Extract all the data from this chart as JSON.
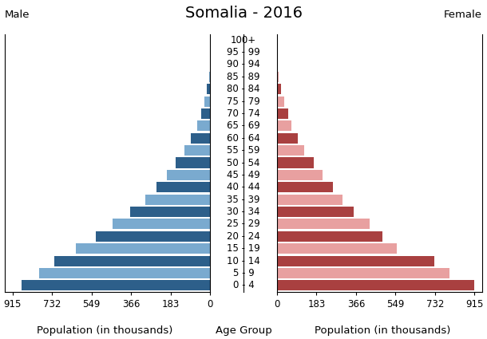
{
  "title": "Somalia - 2016",
  "title_fontsize": 14,
  "male_label": "Male",
  "female_label": "Female",
  "xlabel_left": "Population (in thousands)",
  "xlabel_center": "Age Group",
  "xlabel_right": "Population (in thousands)",
  "age_groups": [
    "0 - 4",
    "5 - 9",
    "10 - 14",
    "15 - 19",
    "20 - 24",
    "25 - 29",
    "30 - 34",
    "35 - 39",
    "40 - 44",
    "45 - 49",
    "50 - 54",
    "55 - 59",
    "60 - 64",
    "65 - 69",
    "70 - 74",
    "75 - 79",
    "80 - 84",
    "85 - 89",
    "90 - 94",
    "95 - 99",
    "100+"
  ],
  "male_values": [
    873,
    790,
    720,
    620,
    530,
    450,
    370,
    300,
    250,
    200,
    160,
    120,
    90,
    60,
    40,
    25,
    14,
    5,
    2,
    0.5,
    0.1
  ],
  "female_values": [
    915,
    800,
    730,
    555,
    490,
    430,
    355,
    305,
    260,
    210,
    170,
    125,
    97,
    68,
    52,
    32,
    18,
    7,
    3,
    0.8,
    0.2
  ],
  "male_dark": "#2d5f8a",
  "male_light": "#7aaacf",
  "female_dark": "#a94040",
  "female_light": "#e8a0a0",
  "xlim": 950,
  "xticks": [
    0,
    183,
    366,
    549,
    732,
    915
  ],
  "bar_height": 0.85,
  "background_color": "#ffffff",
  "label_fontsize": 8.5,
  "tick_fontsize": 8.5,
  "xlabel_fontsize": 9.5
}
